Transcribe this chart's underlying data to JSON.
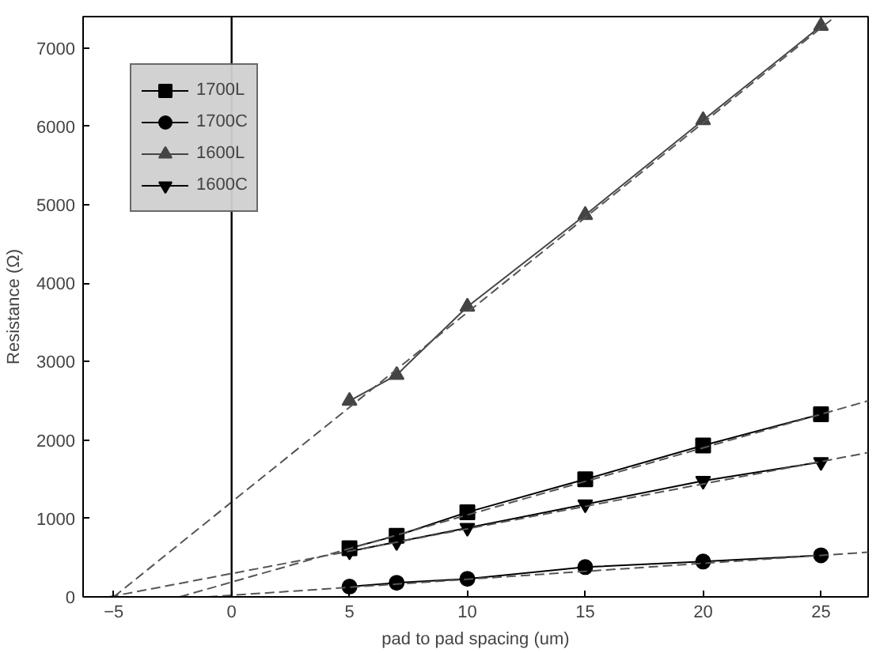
{
  "chart_data": {
    "type": "line",
    "xlabel": "pad to pad spacing (um)",
    "ylabel": "Resistance (Ω)",
    "xlim": [
      -6.3,
      27
    ],
    "ylim": [
      0,
      7400
    ],
    "xticks": [
      -5,
      0,
      5,
      10,
      15,
      20,
      25
    ],
    "yticks": [
      0,
      1000,
      2000,
      3000,
      4000,
      5000,
      6000,
      7000
    ],
    "grid": false,
    "legend": "top left",
    "ref_lines": [
      {
        "axis": "x",
        "value": 0,
        "color": "#000000",
        "line_style": "solid"
      }
    ],
    "series": [
      {
        "name": "1700L",
        "color": "#000000",
        "marker": "square",
        "x": [
          5,
          7,
          10,
          15,
          20,
          25
        ],
        "values": [
          620,
          780,
          1080,
          1500,
          1930,
          2330
        ]
      },
      {
        "name": "1700C",
        "color": "#000000",
        "marker": "circle",
        "x": [
          5,
          7,
          10,
          15,
          20,
          25
        ],
        "values": [
          130,
          180,
          230,
          380,
          450,
          530
        ]
      },
      {
        "name": "1600L",
        "color": "#444444",
        "marker": "triangle",
        "x": [
          5,
          7,
          10,
          15,
          20,
          25
        ],
        "values": [
          2500,
          2830,
          3700,
          4870,
          6080,
          7280
        ]
      },
      {
        "name": "1600C",
        "color": "#000000",
        "marker": "triangle",
        "x": [
          5,
          7,
          10,
          15,
          20,
          25
        ],
        "values": [
          580,
          700,
          880,
          1180,
          1480,
          1720
        ]
      },
      {
        "type": "line",
        "color": "#555555",
        "line_style": "dashed",
        "marker": "none",
        "x": [
          -2.2,
          27
        ],
        "values": [
          0,
          2500
        ]
      },
      {
        "type": "line",
        "color": "#555555",
        "line_style": "dashed",
        "marker": "none",
        "x": [
          -1,
          27
        ],
        "values": [
          0,
          570
        ]
      },
      {
        "type": "line",
        "color": "#555555",
        "line_style": "dashed",
        "marker": "none",
        "x": [
          -5,
          25.6
        ],
        "values": [
          0,
          7400
        ]
      },
      {
        "type": "line",
        "color": "#555555",
        "line_style": "dashed",
        "marker": "none",
        "x": [
          -5.2,
          27
        ],
        "values": [
          0,
          1840
        ]
      }
    ]
  }
}
